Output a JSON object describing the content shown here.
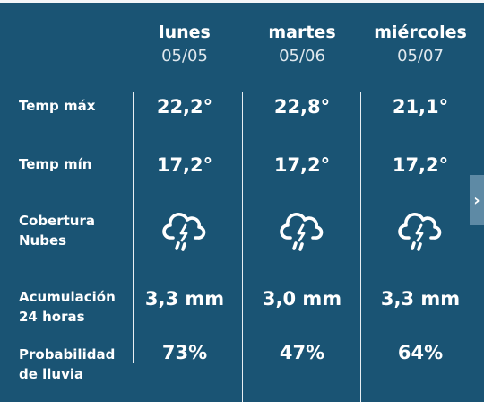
{
  "days": [
    {
      "name": "lunes",
      "date": "05/05",
      "temp_max": "22,2°",
      "temp_min": "17,2°",
      "clouds_icon": "thunderstorm-icon",
      "rain_acc": "3,3 mm",
      "rain_prob": "73%"
    },
    {
      "name": "martes",
      "date": "05/06",
      "temp_max": "22,8°",
      "temp_min": "17,2°",
      "clouds_icon": "thunderstorm-icon",
      "rain_acc": "3,0 mm",
      "rain_prob": "47%"
    },
    {
      "name": "miércoles",
      "date": "05/07",
      "temp_max": "21,1°",
      "temp_min": "17,2°",
      "clouds_icon": "thunderstorm-icon",
      "rain_acc": "3,3 mm",
      "rain_prob": "64%"
    }
  ],
  "labels": {
    "temp_max": "Temp máx",
    "temp_min": "Temp mín",
    "clouds_line1": "Cobertura",
    "clouds_line2": "Nubes",
    "rain_acc_line1": "Acumulación",
    "rain_acc_line2": "24 horas",
    "rain_prob_line1": "Probabilidad",
    "rain_prob_line2": "de lluvia"
  },
  "next_button_icon": "chevron-right-icon",
  "colors": {
    "background": "#1a5474",
    "text": "#ffffff",
    "tab": "#5e8aa5"
  }
}
